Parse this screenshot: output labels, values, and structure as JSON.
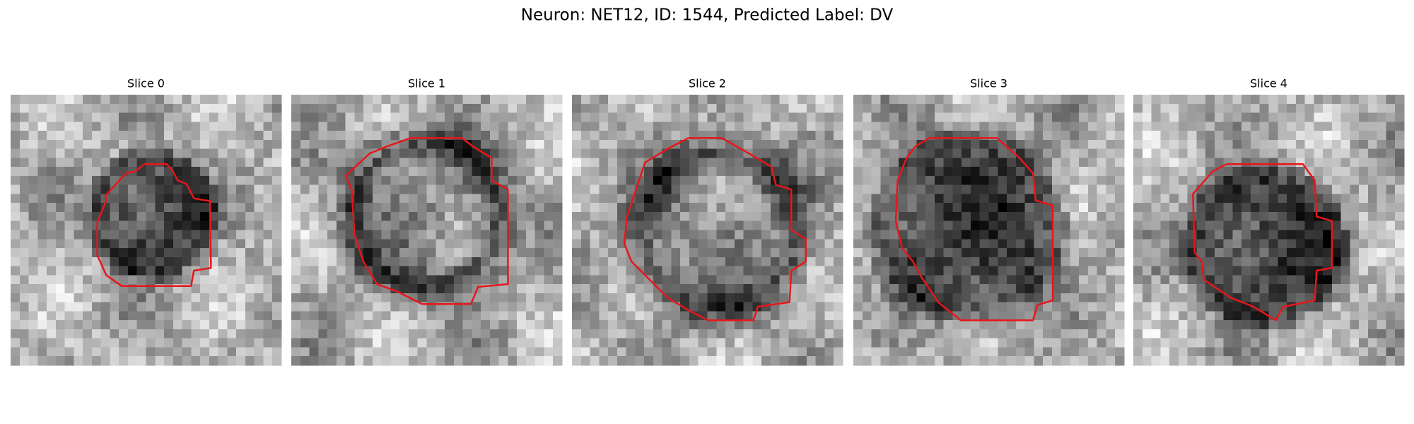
{
  "title": "Neuron: NET12, ID: 1544, Predicted Label: DV",
  "panels": [
    {
      "title": "Slice 0"
    },
    {
      "title": "Slice 1"
    },
    {
      "title": "Slice 2"
    },
    {
      "title": "Slice 3"
    },
    {
      "title": "Slice 4"
    }
  ]
}
